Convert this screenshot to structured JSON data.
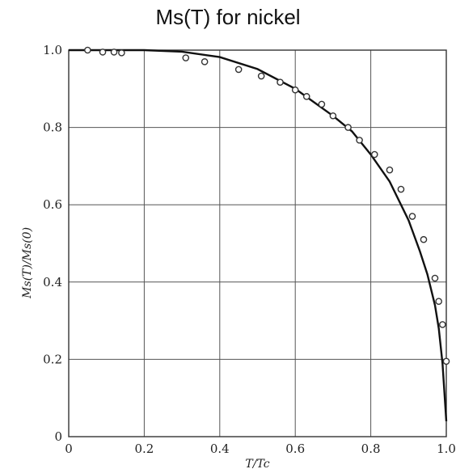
{
  "chart_data": {
    "type": "scatter",
    "title": "Ms(T) for nickel",
    "xlabel": "T/Tc",
    "ylabel": "Ms(T)/Ms(0)",
    "xlim": [
      0,
      1.0
    ],
    "ylim": [
      0,
      1.0
    ],
    "x_ticks": [
      "0",
      "0.2",
      "0.4",
      "0.6",
      "0.8",
      "1.0"
    ],
    "y_ticks": [
      "0",
      "0.2",
      "0.4",
      "0.6",
      "0.8",
      "1.0"
    ],
    "grid": true,
    "series": [
      {
        "marker": "open-circle",
        "points": [
          [
            0.05,
            1.0
          ],
          [
            0.09,
            0.995
          ],
          [
            0.12,
            0.995
          ],
          [
            0.14,
            0.993
          ],
          [
            0.31,
            0.98
          ],
          [
            0.36,
            0.97
          ],
          [
            0.45,
            0.95
          ],
          [
            0.51,
            0.933
          ],
          [
            0.56,
            0.917
          ],
          [
            0.6,
            0.897
          ],
          [
            0.63,
            0.88
          ],
          [
            0.67,
            0.86
          ],
          [
            0.7,
            0.83
          ],
          [
            0.74,
            0.8
          ],
          [
            0.77,
            0.767
          ],
          [
            0.81,
            0.73
          ],
          [
            0.85,
            0.69
          ],
          [
            0.88,
            0.64
          ],
          [
            0.91,
            0.57
          ],
          [
            0.94,
            0.51
          ],
          [
            0.97,
            0.41
          ],
          [
            0.98,
            0.35
          ],
          [
            0.99,
            0.29
          ],
          [
            1.0,
            0.195
          ]
        ]
      },
      {
        "line": "solid",
        "points": [
          [
            0,
            1.0
          ],
          [
            0.2,
            1.0
          ],
          [
            0.3,
            0.996
          ],
          [
            0.4,
            0.982
          ],
          [
            0.5,
            0.951
          ],
          [
            0.6,
            0.9
          ],
          [
            0.7,
            0.83
          ],
          [
            0.75,
            0.79
          ],
          [
            0.8,
            0.73
          ],
          [
            0.85,
            0.66
          ],
          [
            0.9,
            0.56
          ],
          [
            0.93,
            0.48
          ],
          [
            0.95,
            0.42
          ],
          [
            0.97,
            0.34
          ],
          [
            0.98,
            0.28
          ],
          [
            0.99,
            0.19
          ],
          [
            1.0,
            0.04
          ]
        ]
      }
    ]
  }
}
